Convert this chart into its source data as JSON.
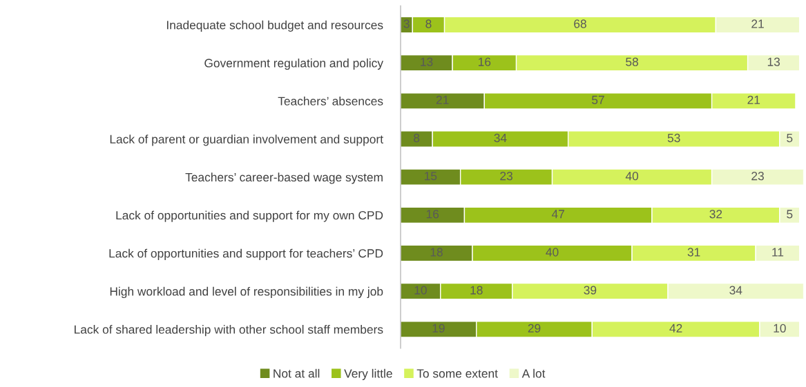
{
  "chart_data": {
    "type": "bar",
    "orientation": "horizontal",
    "stacked": true,
    "data_labels": true,
    "legend": "bottom",
    "grid": false,
    "categories": [
      "Inadequate school budget and resources",
      "Government regulation and policy",
      "Teachers’ absences",
      "Lack of parent or guardian involvement and support",
      "Teachers’ career-based wage system",
      "Lack of opportunities and support for my own CPD",
      "Lack of opportunities and support for teachers’ CPD",
      "High workload and level of responsibilities in my job",
      "Lack of shared leadership with other school staff members"
    ],
    "series": [
      {
        "name": "Not at all",
        "color": "#6f8c1e",
        "values": [
          3,
          13,
          21,
          8,
          15,
          16,
          18,
          10,
          19
        ]
      },
      {
        "name": "Very little",
        "color": "#9cc21b",
        "values": [
          8,
          16,
          57,
          34,
          23,
          47,
          40,
          18,
          29
        ]
      },
      {
        "name": "To some extent",
        "color": "#d5f25c",
        "values": [
          68,
          58,
          21,
          53,
          40,
          32,
          31,
          39,
          42
        ]
      },
      {
        "name": "A lot",
        "color": "#eef8c9",
        "values": [
          21,
          13,
          null,
          5,
          23,
          5,
          11,
          34,
          10
        ]
      }
    ]
  }
}
